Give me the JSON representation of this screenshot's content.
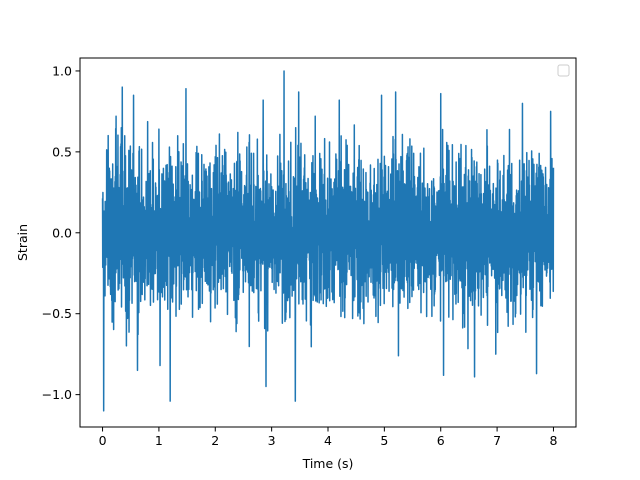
{
  "chart_data": {
    "type": "line",
    "title": "",
    "xlabel": "Time (s)",
    "ylabel": "Strain",
    "xlim": [
      -0.4,
      8.4
    ],
    "ylim": [
      -1.2,
      1.08
    ],
    "x_ticks": [
      0,
      1,
      2,
      3,
      4,
      5,
      6,
      7,
      8
    ],
    "x_tick_labels": [
      "0",
      "1",
      "2",
      "3",
      "4",
      "5",
      "6",
      "7",
      "8"
    ],
    "y_ticks": [
      -1.0,
      -0.5,
      0.0,
      0.5,
      1.0
    ],
    "y_tick_labels": [
      "−1.0",
      "−0.5",
      "0.0",
      "0.5",
      "1.0"
    ],
    "grid": false,
    "legend": {
      "placement": "upper-right",
      "entries": []
    },
    "series": [
      {
        "color": "#1f77b4",
        "x_start": 0.0,
        "x_end": 8.0,
        "typical_amplitude": 0.55,
        "peaks": [
          {
            "x": 0.02,
            "y": -1.1
          },
          {
            "x": 0.1,
            "y": 0.6
          },
          {
            "x": 0.24,
            "y": 0.72
          },
          {
            "x": 0.35,
            "y": 0.9
          },
          {
            "x": 0.55,
            "y": 0.85
          },
          {
            "x": 0.62,
            "y": -0.85
          },
          {
            "x": 1.02,
            "y": -0.82
          },
          {
            "x": 1.2,
            "y": -1.04
          },
          {
            "x": 1.48,
            "y": 0.89
          },
          {
            "x": 2.4,
            "y": 0.62
          },
          {
            "x": 2.85,
            "y": 0.82
          },
          {
            "x": 2.9,
            "y": -0.95
          },
          {
            "x": 3.22,
            "y": 1.0
          },
          {
            "x": 3.48,
            "y": 0.87
          },
          {
            "x": 3.42,
            "y": -1.04
          },
          {
            "x": 4.2,
            "y": 0.82
          },
          {
            "x": 4.95,
            "y": 0.85
          },
          {
            "x": 5.2,
            "y": 0.87
          },
          {
            "x": 5.25,
            "y": -0.76
          },
          {
            "x": 6.0,
            "y": 0.86
          },
          {
            "x": 6.05,
            "y": -0.88
          },
          {
            "x": 6.6,
            "y": -0.89
          },
          {
            "x": 7.45,
            "y": 0.8
          },
          {
            "x": 7.7,
            "y": -0.87
          },
          {
            "x": 7.95,
            "y": 0.75
          }
        ]
      }
    ]
  }
}
